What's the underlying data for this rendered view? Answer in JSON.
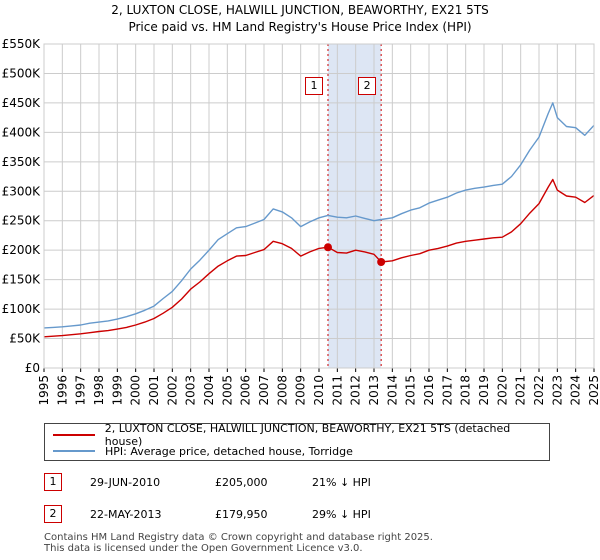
{
  "header": {
    "title_line1": "2, LUXTON CLOSE, HALWILL JUNCTION, BEAWORTHY, EX21 5TS",
    "title_line2": "Price paid vs. HM Land Registry's House Price Index (HPI)"
  },
  "legend": {
    "series1": "2, LUXTON CLOSE, HALWILL JUNCTION, BEAWORTHY, EX21 5TS (detached house)",
    "series2": "HPI: Average price, detached house, Torridge"
  },
  "colors": {
    "price_paid": "#cc0000",
    "hpi": "#6699cc",
    "shade": "#dde6f4",
    "grid": "#cccccc"
  },
  "transactions": [
    {
      "num": "1",
      "date": "29-JUN-2010",
      "price": "£205,000",
      "hpi_diff": "21% ↓ HPI"
    },
    {
      "num": "2",
      "date": "22-MAY-2013",
      "price": "£179,950",
      "hpi_diff": "29% ↓ HPI"
    }
  ],
  "footer": {
    "line1": "Contains HM Land Registry data © Crown copyright and database right 2025.",
    "line2": "This data is licensed under the Open Government Licence v3.0."
  },
  "chart_data": {
    "type": "line",
    "title": "Price paid vs. HM Land Registry's House Price Index (HPI)",
    "xlim": [
      1995,
      2025
    ],
    "ylim": [
      0,
      550000
    ],
    "x_ticks": [
      "1995",
      "1996",
      "1997",
      "1998",
      "1999",
      "2000",
      "2001",
      "2002",
      "2003",
      "2004",
      "2005",
      "2006",
      "2007",
      "2008",
      "2009",
      "2010",
      "2011",
      "2012",
      "2013",
      "2014",
      "2015",
      "2016",
      "2017",
      "2018",
      "2019",
      "2020",
      "2021",
      "2022",
      "2023",
      "2024",
      "2025"
    ],
    "y_ticks": [
      {
        "value": 0,
        "label": "£0"
      },
      {
        "value": 50000,
        "label": "£50K"
      },
      {
        "value": 100000,
        "label": "£100K"
      },
      {
        "value": 150000,
        "label": "£150K"
      },
      {
        "value": 200000,
        "label": "£200K"
      },
      {
        "value": 250000,
        "label": "£250K"
      },
      {
        "value": 300000,
        "label": "£300K"
      },
      {
        "value": 350000,
        "label": "£350K"
      },
      {
        "value": 400000,
        "label": "£400K"
      },
      {
        "value": 450000,
        "label": "£450K"
      },
      {
        "value": 500000,
        "label": "£500K"
      },
      {
        "value": 550000,
        "label": "£550K"
      }
    ],
    "shaded_range": [
      2010.49,
      2013.39
    ],
    "markers": [
      {
        "label": "1",
        "x": 2010.49,
        "y": 205000
      },
      {
        "label": "2",
        "x": 2013.39,
        "y": 179950
      }
    ],
    "series": [
      {
        "name": "HPI: Average price, detached house, Torridge",
        "color": "#6699cc",
        "points": [
          [
            1995.0,
            68000
          ],
          [
            1995.5,
            69000
          ],
          [
            1996.0,
            70000
          ],
          [
            1996.5,
            71500
          ],
          [
            1997.0,
            73000
          ],
          [
            1997.5,
            76000
          ],
          [
            1998.0,
            78000
          ],
          [
            1998.5,
            80000
          ],
          [
            1999.0,
            83000
          ],
          [
            1999.5,
            87000
          ],
          [
            2000.0,
            92000
          ],
          [
            2000.5,
            98000
          ],
          [
            2001.0,
            105000
          ],
          [
            2001.5,
            118000
          ],
          [
            2002.0,
            130000
          ],
          [
            2002.5,
            148000
          ],
          [
            2003.0,
            168000
          ],
          [
            2003.5,
            183000
          ],
          [
            2004.0,
            200000
          ],
          [
            2004.5,
            218000
          ],
          [
            2005.0,
            228000
          ],
          [
            2005.5,
            238000
          ],
          [
            2006.0,
            240000
          ],
          [
            2006.5,
            246000
          ],
          [
            2007.0,
            252000
          ],
          [
            2007.5,
            270000
          ],
          [
            2008.0,
            265000
          ],
          [
            2008.5,
            255000
          ],
          [
            2009.0,
            240000
          ],
          [
            2009.5,
            248000
          ],
          [
            2010.0,
            255000
          ],
          [
            2010.49,
            259000
          ],
          [
            2011.0,
            256000
          ],
          [
            2011.5,
            255000
          ],
          [
            2012.0,
            258000
          ],
          [
            2012.5,
            254000
          ],
          [
            2013.0,
            250000
          ],
          [
            2013.39,
            252000
          ],
          [
            2014.0,
            255000
          ],
          [
            2014.5,
            262000
          ],
          [
            2015.0,
            268000
          ],
          [
            2015.5,
            272000
          ],
          [
            2016.0,
            280000
          ],
          [
            2016.5,
            285000
          ],
          [
            2017.0,
            290000
          ],
          [
            2017.5,
            297000
          ],
          [
            2018.0,
            302000
          ],
          [
            2018.5,
            305000
          ],
          [
            2019.0,
            307000
          ],
          [
            2019.5,
            310000
          ],
          [
            2020.0,
            312000
          ],
          [
            2020.5,
            325000
          ],
          [
            2021.0,
            345000
          ],
          [
            2021.5,
            370000
          ],
          [
            2022.0,
            392000
          ],
          [
            2022.5,
            432000
          ],
          [
            2022.75,
            450000
          ],
          [
            2023.0,
            425000
          ],
          [
            2023.5,
            410000
          ],
          [
            2024.0,
            408000
          ],
          [
            2024.5,
            395000
          ],
          [
            2025.0,
            412000
          ]
        ]
      },
      {
        "name": "2, LUXTON CLOSE, HALWILL JUNCTION, BEAWORTHY, EX21 5TS (detached house)",
        "color": "#cc0000",
        "points": [
          [
            1995.0,
            53000
          ],
          [
            1995.5,
            54000
          ],
          [
            1996.0,
            55000
          ],
          [
            1996.5,
            56500
          ],
          [
            1997.0,
            58000
          ],
          [
            1997.5,
            60000
          ],
          [
            1998.0,
            62000
          ],
          [
            1998.5,
            63500
          ],
          [
            1999.0,
            66000
          ],
          [
            1999.5,
            69000
          ],
          [
            2000.0,
            73000
          ],
          [
            2000.5,
            78000
          ],
          [
            2001.0,
            84000
          ],
          [
            2001.5,
            93000
          ],
          [
            2002.0,
            103000
          ],
          [
            2002.5,
            117000
          ],
          [
            2003.0,
            134000
          ],
          [
            2003.5,
            146000
          ],
          [
            2004.0,
            160000
          ],
          [
            2004.5,
            173000
          ],
          [
            2005.0,
            182000
          ],
          [
            2005.5,
            190000
          ],
          [
            2006.0,
            191000
          ],
          [
            2006.5,
            196000
          ],
          [
            2007.0,
            201000
          ],
          [
            2007.5,
            215000
          ],
          [
            2008.0,
            211000
          ],
          [
            2008.5,
            203000
          ],
          [
            2009.0,
            190000
          ],
          [
            2009.5,
            197000
          ],
          [
            2010.0,
            203000
          ],
          [
            2010.49,
            205000
          ],
          [
            2011.0,
            196000
          ],
          [
            2011.5,
            195000
          ],
          [
            2012.0,
            200000
          ],
          [
            2012.5,
            197000
          ],
          [
            2013.0,
            193000
          ],
          [
            2013.39,
            179950
          ],
          [
            2014.0,
            182000
          ],
          [
            2014.5,
            187000
          ],
          [
            2015.0,
            191000
          ],
          [
            2015.5,
            194000
          ],
          [
            2016.0,
            200000
          ],
          [
            2016.5,
            203000
          ],
          [
            2017.0,
            207000
          ],
          [
            2017.5,
            212000
          ],
          [
            2018.0,
            215000
          ],
          [
            2018.5,
            217000
          ],
          [
            2019.0,
            219000
          ],
          [
            2019.5,
            221000
          ],
          [
            2020.0,
            222000
          ],
          [
            2020.5,
            231000
          ],
          [
            2021.0,
            245000
          ],
          [
            2021.5,
            263000
          ],
          [
            2022.0,
            279000
          ],
          [
            2022.5,
            307000
          ],
          [
            2022.75,
            320000
          ],
          [
            2023.0,
            302000
          ],
          [
            2023.5,
            292000
          ],
          [
            2024.0,
            290000
          ],
          [
            2024.5,
            281000
          ],
          [
            2025.0,
            293000
          ]
        ]
      }
    ]
  }
}
